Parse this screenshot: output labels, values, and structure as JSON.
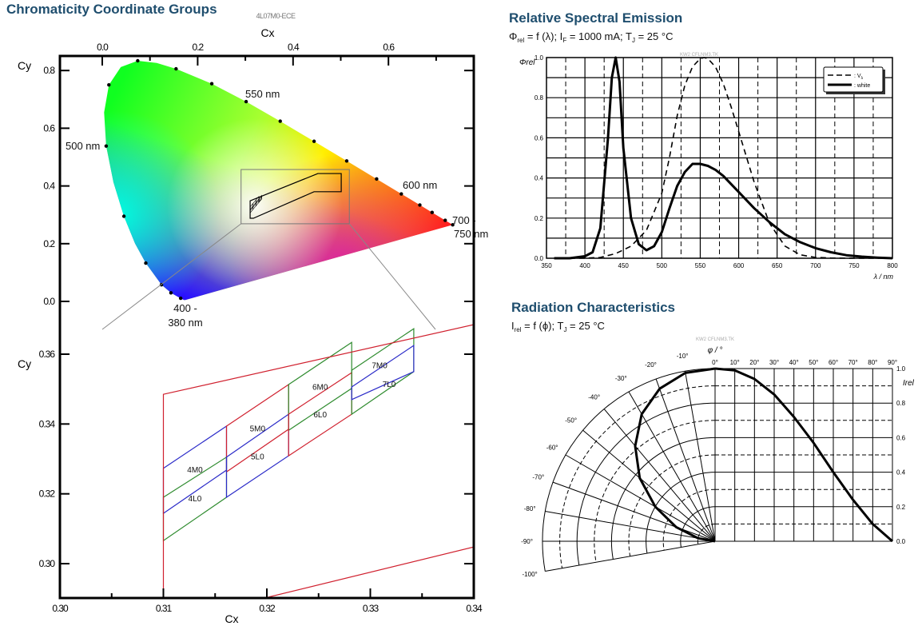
{
  "sections": {
    "chromaticity_title": "Chromaticity Coordinate Groups",
    "spectral_title": "Relative Spectral Emission",
    "spectral_subtitle": [
      {
        "t": "Φ"
      },
      {
        "s": "rel"
      },
      {
        "t": " = f (λ); I"
      },
      {
        "s": "F"
      },
      {
        "t": " = 1000 mA; T"
      },
      {
        "s": "J"
      },
      {
        "t": " = 25 °C"
      }
    ],
    "radiation_title": "Radiation Characteristics",
    "radiation_subtitle": [
      {
        "t": "I"
      },
      {
        "s": "rel"
      },
      {
        "t": " = f (ϕ); T"
      },
      {
        "s": "J"
      },
      {
        "t": " = 25 °C"
      }
    ]
  },
  "chart_data": [
    {
      "type": "line",
      "kind": "CIE 1931 chromaticity diagram with zoomed bin detail",
      "watermark": "4L07M0-ECE",
      "xlabel": "Cx",
      "ylabel": "Cy",
      "overview": {
        "xlim": [
          -0.09,
          0.78
        ],
        "ylim": [
          -0.09,
          0.85
        ],
        "x_ticks": [
          "0.0",
          "0.2",
          "0.4",
          "0.6"
        ],
        "y_ticks": [
          "0.0",
          "0.2",
          "0.4",
          "0.6",
          "0.8"
        ],
        "spectral_locus": [
          [
            380,
            0.1741,
            0.005
          ],
          [
            420,
            0.1714,
            0.0051
          ],
          [
            440,
            0.1644,
            0.0109
          ],
          [
            450,
            0.1566,
            0.0177
          ],
          [
            460,
            0.144,
            0.0297
          ],
          [
            470,
            0.1241,
            0.0578
          ],
          [
            480,
            0.0913,
            0.1327
          ],
          [
            485,
            0.0687,
            0.2007
          ],
          [
            490,
            0.0454,
            0.295
          ],
          [
            495,
            0.0235,
            0.4127
          ],
          [
            500,
            0.0082,
            0.5384
          ],
          [
            505,
            0.0039,
            0.6548
          ],
          [
            510,
            0.0139,
            0.7502
          ],
          [
            515,
            0.0389,
            0.812
          ],
          [
            520,
            0.0743,
            0.8338
          ],
          [
            525,
            0.1142,
            0.8262
          ],
          [
            530,
            0.1547,
            0.8059
          ],
          [
            540,
            0.2296,
            0.7543
          ],
          [
            550,
            0.3016,
            0.6923
          ],
          [
            560,
            0.3731,
            0.6245
          ],
          [
            570,
            0.4441,
            0.5547
          ],
          [
            580,
            0.5125,
            0.4866
          ],
          [
            590,
            0.5752,
            0.4242
          ],
          [
            600,
            0.627,
            0.3725
          ],
          [
            610,
            0.6658,
            0.334
          ],
          [
            620,
            0.6915,
            0.3083
          ],
          [
            640,
            0.719,
            0.2809
          ],
          [
            660,
            0.73,
            0.27
          ],
          [
            700,
            0.7347,
            0.2653
          ]
        ],
        "marked_wavelengths": [
          400,
          440,
          460,
          470,
          480,
          490,
          500,
          510,
          520,
          530,
          540,
          550,
          560,
          570,
          580,
          590,
          600,
          610,
          620,
          640,
          700
        ],
        "wavelength_labels": [
          "550 nm",
          "500 nm",
          "600 nm",
          "700 -",
          "750 nm",
          "400 -",
          "380 nm"
        ],
        "zoom_window": {
          "x": [
            0.291,
            0.518
          ],
          "y": [
            0.269,
            0.457
          ]
        }
      },
      "ece_region": [
        [
          0.31,
          0.3485
        ],
        [
          0.452,
          0.443
        ],
        [
          0.501,
          0.443
        ],
        [
          0.501,
          0.38
        ],
        [
          0.444,
          0.38
        ],
        [
          0.3168,
          0.288
        ],
        [
          0.31,
          0.288
        ]
      ],
      "detail": {
        "xlim": [
          0.3,
          0.34
        ],
        "ylim": [
          0.29,
          0.3676
        ],
        "x_ticks": [
          "0.30",
          "0.31",
          "0.32",
          "0.33",
          "0.34"
        ],
        "y_ticks": [
          "0.30",
          "0.32",
          "0.34",
          "0.36"
        ],
        "bins": [
          {
            "name": "4M0",
            "color": "#2a2ac8",
            "points": [
              [
                0.31,
                0.3273
              ],
              [
                0.3161,
                0.3394
              ],
              [
                0.3161,
                0.3268
              ],
              [
                0.31,
                0.3144
              ]
            ]
          },
          {
            "name": "4L0",
            "color": "#2e8b2e",
            "points": [
              [
                0.31,
                0.319
              ],
              [
                0.3161,
                0.3305
              ],
              [
                0.3161,
                0.319
              ],
              [
                0.31,
                0.3066
              ]
            ]
          },
          {
            "name": "5M0",
            "color": "#d0202e",
            "points": [
              [
                0.3161,
                0.3394
              ],
              [
                0.3221,
                0.3513
              ],
              [
                0.3221,
                0.3385
              ],
              [
                0.3161,
                0.3263
              ]
            ]
          },
          {
            "name": "5L0",
            "color": "#2a2ac8",
            "points": [
              [
                0.3161,
                0.3305
              ],
              [
                0.3221,
                0.3428
              ],
              [
                0.3221,
                0.3309
              ],
              [
                0.3161,
                0.319
              ]
            ]
          },
          {
            "name": "6M0",
            "color": "#2e8b2e",
            "points": [
              [
                0.3221,
                0.3513
              ],
              [
                0.3282,
                0.3634
              ],
              [
                0.3282,
                0.3502
              ],
              [
                0.3221,
                0.3382
              ]
            ]
          },
          {
            "name": "6L0",
            "color": "#d0202e",
            "points": [
              [
                0.3221,
                0.3428
              ],
              [
                0.3282,
                0.3547
              ],
              [
                0.3282,
                0.3428
              ],
              [
                0.3221,
                0.3309
              ]
            ]
          },
          {
            "name": "7M0",
            "color": "#2e8b2e",
            "points": [
              [
                0.3282,
                0.3554
              ],
              [
                0.3342,
                0.3673
              ],
              [
                0.3342,
                0.355
              ],
              [
                0.3282,
                0.3428
              ]
            ]
          },
          {
            "name": "7L0",
            "color": "#2a2ac8",
            "points": [
              [
                0.3282,
                0.3506
              ],
              [
                0.3342,
                0.3625
              ],
              [
                0.3342,
                0.355
              ],
              [
                0.3282,
                0.347
              ]
            ]
          }
        ]
      }
    },
    {
      "type": "line",
      "watermark": "KW2 CFLNM3.TK",
      "ylabel": "Φrel",
      "xlabel": "λ / nm",
      "xlim": [
        350,
        800
      ],
      "ylim": [
        0,
        1.0
      ],
      "x_ticks": [
        "350",
        "400",
        "450",
        "500",
        "550",
        "600",
        "650",
        "700",
        "750",
        "800"
      ],
      "y_ticks": [
        "0.0",
        "0.2",
        "0.4",
        "0.6",
        "0.8",
        "1.0"
      ],
      "grid": true,
      "legend_position": "top-right",
      "series": [
        {
          "name": "Vλ",
          "style": "dashed",
          "x": [
            380,
            400,
            420,
            440,
            460,
            480,
            500,
            510,
            520,
            530,
            540,
            550,
            555,
            560,
            570,
            580,
            590,
            600,
            620,
            640,
            660,
            680,
            700,
            720,
            750,
            800
          ],
          "values": [
            0,
            0.0004,
            0.004,
            0.023,
            0.06,
            0.139,
            0.323,
            0.503,
            0.71,
            0.862,
            0.954,
            0.995,
            1.0,
            0.995,
            0.952,
            0.87,
            0.757,
            0.631,
            0.381,
            0.175,
            0.061,
            0.017,
            0.004,
            0.001,
            0,
            0
          ]
        },
        {
          "name": "white",
          "style": "solid",
          "x": [
            360,
            380,
            400,
            410,
            420,
            430,
            435,
            440,
            445,
            450,
            460,
            470,
            480,
            490,
            500,
            510,
            520,
            530,
            540,
            550,
            560,
            570,
            580,
            590,
            600,
            620,
            640,
            660,
            680,
            700,
            720,
            740,
            760,
            780,
            800
          ],
          "values": [
            0,
            0,
            0.01,
            0.03,
            0.15,
            0.6,
            0.9,
            1.0,
            0.88,
            0.55,
            0.2,
            0.07,
            0.04,
            0.06,
            0.13,
            0.25,
            0.36,
            0.43,
            0.47,
            0.47,
            0.46,
            0.44,
            0.41,
            0.37,
            0.33,
            0.25,
            0.18,
            0.12,
            0.08,
            0.05,
            0.03,
            0.015,
            0.008,
            0.003,
            0
          ]
        }
      ],
      "legend": [
        {
          "label": ": V",
          "sub": "λ"
        },
        {
          "label": ": white"
        }
      ]
    },
    {
      "type": "line",
      "kind": "polar + cartesian radiation pattern",
      "watermark": "KW2 CFLNM3.TK",
      "angle_label": "φ / °",
      "ylabel": "Irel",
      "x_ticks": [
        "0°",
        "10°",
        "20°",
        "30°",
        "40°",
        "50°",
        "60°",
        "70°",
        "80°",
        "90°"
      ],
      "polar_angle_ticks": [
        "-10°",
        "-20°",
        "-30°",
        "-40°",
        "-50°",
        "-60°",
        "-70°",
        "-80°",
        "-90°",
        "-100°"
      ],
      "y_ticks": [
        "0.0",
        "0.2",
        "0.4",
        "0.6",
        "0.8",
        "1.0"
      ],
      "ylim": [
        0,
        1.0
      ],
      "angles_deg": [
        0,
        10,
        20,
        30,
        40,
        50,
        60,
        70,
        80,
        90
      ],
      "values": [
        1.0,
        0.99,
        0.94,
        0.85,
        0.72,
        0.57,
        0.4,
        0.24,
        0.1,
        0.0
      ]
    }
  ]
}
